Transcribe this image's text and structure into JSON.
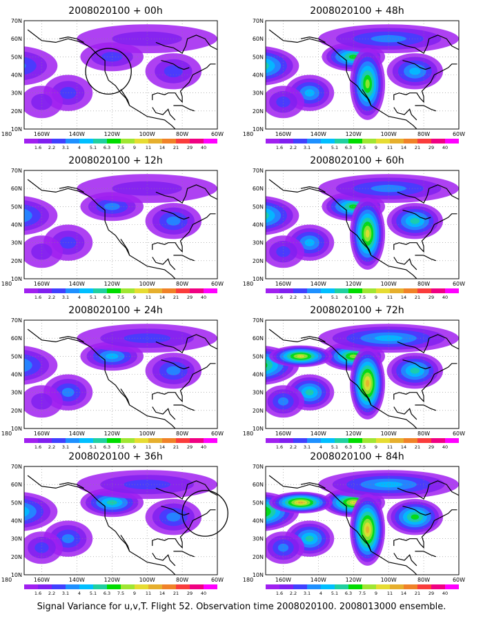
{
  "caption": "Signal Variance for u,v,T. Flight 52. Observation time 2008020100. 2008013000 ensemble.",
  "map": {
    "lat_ticks": [
      "70N",
      "60N",
      "50N",
      "40N",
      "30N",
      "20N",
      "10N"
    ],
    "lon_ticks": [
      "180",
      "160W",
      "140W",
      "120W",
      "100W",
      "80W",
      "60W"
    ],
    "lat_range": [
      10,
      70
    ],
    "lon_range": [
      -170,
      -60
    ],
    "grid": "dotted",
    "land_outline": "black coastlines of North America and Eastern Pacific"
  },
  "colorbar": {
    "labels": [
      "1.6",
      "2.2",
      "3.1",
      "4",
      "5.1",
      "6.3",
      "7.5",
      "9",
      "11",
      "14",
      "21",
      "29",
      "40"
    ],
    "colors": [
      "#a020f0",
      "#8020f0",
      "#4040ff",
      "#1e90ff",
      "#00bfff",
      "#20d0a0",
      "#00dc00",
      "#a0e632",
      "#e6dc32",
      "#e6af2d",
      "#f08228",
      "#fa3c3c",
      "#f00082",
      "#ff00ff"
    ]
  },
  "chart_data": [
    {
      "type": "heatmap",
      "title": "2008020100 + 00h",
      "lead_hours": 0,
      "intensity": 0.15,
      "markers": [
        {
          "type": "circle",
          "lon": -122,
          "lat": 42
        }
      ]
    },
    {
      "type": "heatmap",
      "title": "2008020100 + 48h",
      "lead_hours": 48,
      "intensity": 0.5,
      "markers": []
    },
    {
      "type": "heatmap",
      "title": "2008020100 + 12h",
      "lead_hours": 12,
      "intensity": 0.25,
      "markers": []
    },
    {
      "type": "heatmap",
      "title": "2008020100 + 60h",
      "lead_hours": 60,
      "intensity": 0.6,
      "markers": []
    },
    {
      "type": "heatmap",
      "title": "2008020100 + 24h",
      "lead_hours": 24,
      "intensity": 0.3,
      "markers": []
    },
    {
      "type": "heatmap",
      "title": "2008020100 + 72h",
      "lead_hours": 72,
      "intensity": 0.7,
      "markers": []
    },
    {
      "type": "heatmap",
      "title": "2008020100 + 36h",
      "lead_hours": 36,
      "intensity": 0.4,
      "markers": [
        {
          "type": "circle",
          "lon": -67,
          "lat": 44
        }
      ]
    },
    {
      "type": "heatmap",
      "title": "2008020100 + 84h",
      "lead_hours": 84,
      "intensity": 0.8,
      "markers": []
    }
  ]
}
